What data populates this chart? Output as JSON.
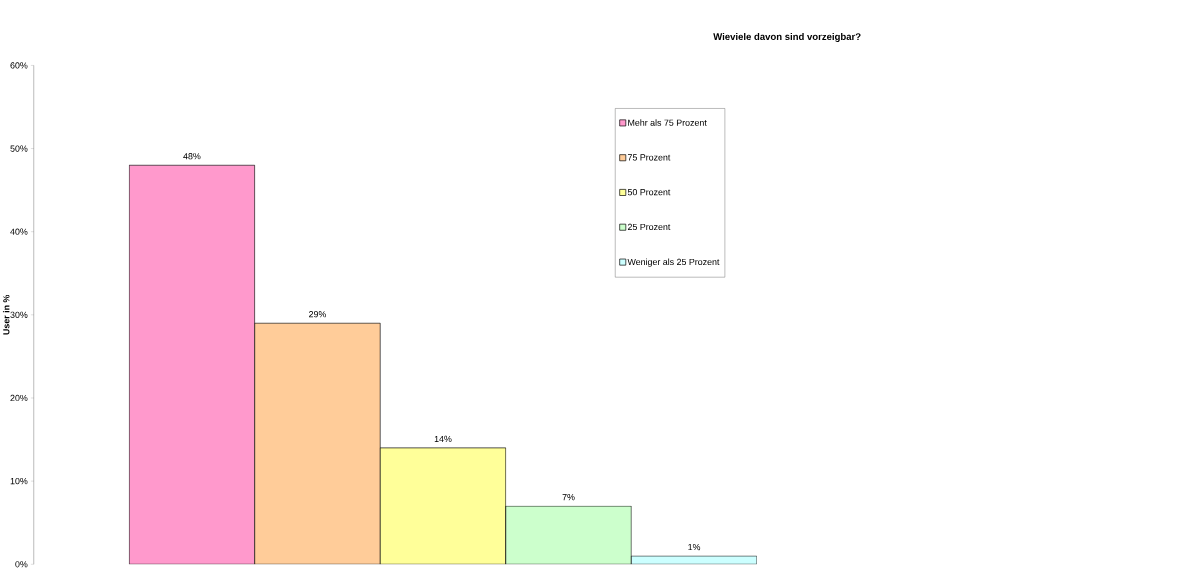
{
  "chart_data": {
    "type": "bar",
    "title": "Wieviele davon sind vorzeigbar?",
    "ylabel": "User in %",
    "categories": [
      null
    ],
    "series": [
      {
        "name": "Mehr als 75 Prozent",
        "color": "#ff99cc",
        "values": [
          48
        ],
        "value_labels": [
          "48%"
        ]
      },
      {
        "name": "75 Prozent",
        "color": "#ffcc99",
        "values": [
          29
        ],
        "value_labels": [
          "29%"
        ]
      },
      {
        "name": "50 Prozent",
        "color": "#ffff99",
        "values": [
          14
        ],
        "value_labels": [
          "14%"
        ]
      },
      {
        "name": "25 Prozent",
        "color": "#ccffcc",
        "values": [
          7
        ],
        "value_labels": [
          "7%"
        ]
      },
      {
        "name": "Weniger als 25 Prozent",
        "color": "#ccffff",
        "values": [
          1
        ],
        "value_labels": [
          "1%"
        ]
      }
    ],
    "ylim": [
      0,
      60
    ],
    "yticks": [
      {
        "value": 0,
        "label": "0%"
      },
      {
        "value": 10,
        "label": "10%"
      },
      {
        "value": 20,
        "label": "20%"
      },
      {
        "value": 30,
        "label": "30%"
      },
      {
        "value": 40,
        "label": "40%"
      },
      {
        "value": 50,
        "label": "50%"
      },
      {
        "value": 60,
        "label": "60%"
      }
    ],
    "legend": "right",
    "grid": false
  }
}
